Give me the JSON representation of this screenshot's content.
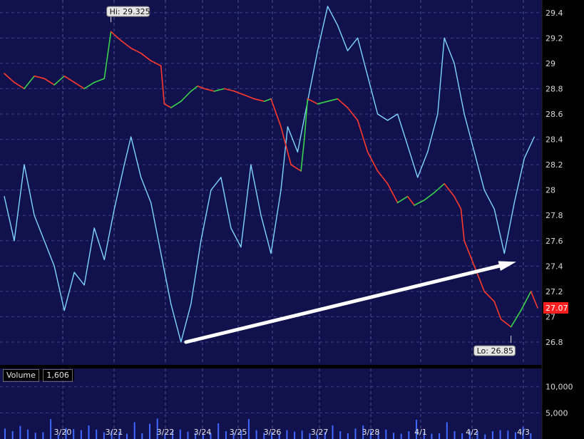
{
  "chart_data": {
    "type": "line",
    "panels": [
      {
        "name": "price",
        "ylim": [
          26.62,
          29.5
        ],
        "yticks": [
          "29.4",
          "29.2",
          "29",
          "28.8",
          "28.6",
          "28.4",
          "28.2",
          "28",
          "27.8",
          "27.6",
          "27.4",
          "27.2",
          "27",
          "26.8"
        ],
        "last_price": "27.07",
        "hi_label": "Hi: 29.325",
        "lo_label": "Lo: 26.85",
        "hi_value": 29.325,
        "lo_value": 26.85
      },
      {
        "name": "volume",
        "title": "Volume",
        "title_value": "1,606",
        "ylim": [
          0,
          13500
        ],
        "yticks": [
          "10,000",
          "5,000"
        ]
      }
    ],
    "xticks": [
      "3/20",
      "3/21",
      "3/22",
      "3/24",
      "3/25",
      "3/26",
      "3/27",
      "3/28",
      "4/1",
      "4/2",
      "4/3"
    ],
    "price_series": [
      {
        "x": 0,
        "y": 28.92
      },
      {
        "x": 0.3,
        "y": 28.85
      },
      {
        "x": 0.6,
        "y": 28.8
      },
      {
        "x": 0.9,
        "y": 28.9
      },
      {
        "x": 1.2,
        "y": 28.88
      },
      {
        "x": 1.5,
        "y": 28.83
      },
      {
        "x": 1.8,
        "y": 28.9
      },
      {
        "x": 2.1,
        "y": 28.85
      },
      {
        "x": 2.4,
        "y": 28.8
      },
      {
        "x": 2.7,
        "y": 28.85
      },
      {
        "x": 3,
        "y": 28.88
      },
      {
        "x": 3.2,
        "y": 29.25
      },
      {
        "x": 3.5,
        "y": 29.18
      },
      {
        "x": 3.8,
        "y": 29.12
      },
      {
        "x": 4.1,
        "y": 29.08
      },
      {
        "x": 4.4,
        "y": 29.02
      },
      {
        "x": 4.7,
        "y": 28.98
      },
      {
        "x": 4.8,
        "y": 28.68
      },
      {
        "x": 5,
        "y": 28.65
      },
      {
        "x": 5.3,
        "y": 28.7
      },
      {
        "x": 5.6,
        "y": 28.78
      },
      {
        "x": 5.8,
        "y": 28.82
      },
      {
        "x": 6,
        "y": 28.8
      },
      {
        "x": 6.3,
        "y": 28.78
      },
      {
        "x": 6.6,
        "y": 28.8
      },
      {
        "x": 6.9,
        "y": 28.78
      },
      {
        "x": 7.2,
        "y": 28.75
      },
      {
        "x": 7.5,
        "y": 28.72
      },
      {
        "x": 7.8,
        "y": 28.7
      },
      {
        "x": 8,
        "y": 28.72
      },
      {
        "x": 8.3,
        "y": 28.5
      },
      {
        "x": 8.6,
        "y": 28.2
      },
      {
        "x": 8.9,
        "y": 28.15
      },
      {
        "x": 9,
        "y": 28.4
      },
      {
        "x": 9.1,
        "y": 28.72
      },
      {
        "x": 9.4,
        "y": 28.68
      },
      {
        "x": 9.7,
        "y": 28.7
      },
      {
        "x": 10,
        "y": 28.72
      },
      {
        "x": 10.3,
        "y": 28.65
      },
      {
        "x": 10.6,
        "y": 28.55
      },
      {
        "x": 10.9,
        "y": 28.3
      },
      {
        "x": 11.2,
        "y": 28.15
      },
      {
        "x": 11.5,
        "y": 28.05
      },
      {
        "x": 11.8,
        "y": 27.9
      },
      {
        "x": 12.1,
        "y": 27.95
      },
      {
        "x": 12.3,
        "y": 27.88
      },
      {
        "x": 12.6,
        "y": 27.92
      },
      {
        "x": 12.9,
        "y": 27.98
      },
      {
        "x": 13.2,
        "y": 28.05
      },
      {
        "x": 13.5,
        "y": 27.95
      },
      {
        "x": 13.7,
        "y": 27.85
      },
      {
        "x": 13.8,
        "y": 27.6
      },
      {
        "x": 14.1,
        "y": 27.4
      },
      {
        "x": 14.4,
        "y": 27.2
      },
      {
        "x": 14.7,
        "y": 27.12
      },
      {
        "x": 14.9,
        "y": 26.98
      },
      {
        "x": 15.2,
        "y": 26.92
      },
      {
        "x": 15.5,
        "y": 27.05
      },
      {
        "x": 15.8,
        "y": 27.2
      },
      {
        "x": 16,
        "y": 27.07
      }
    ],
    "indicator_series": [
      {
        "x": 0,
        "y": 27.95
      },
      {
        "x": 0.3,
        "y": 27.6
      },
      {
        "x": 0.6,
        "y": 28.2
      },
      {
        "x": 0.9,
        "y": 27.8
      },
      {
        "x": 1.2,
        "y": 27.6
      },
      {
        "x": 1.5,
        "y": 27.4
      },
      {
        "x": 1.8,
        "y": 27.05
      },
      {
        "x": 2.1,
        "y": 27.35
      },
      {
        "x": 2.4,
        "y": 27.25
      },
      {
        "x": 2.7,
        "y": 27.7
      },
      {
        "x": 3,
        "y": 27.45
      },
      {
        "x": 3.3,
        "y": 27.85
      },
      {
        "x": 3.6,
        "y": 28.2
      },
      {
        "x": 3.8,
        "y": 28.42
      },
      {
        "x": 4.1,
        "y": 28.1
      },
      {
        "x": 4.4,
        "y": 27.9
      },
      {
        "x": 4.7,
        "y": 27.5
      },
      {
        "x": 5,
        "y": 27.1
      },
      {
        "x": 5.3,
        "y": 26.8
      },
      {
        "x": 5.6,
        "y": 27.1
      },
      {
        "x": 5.9,
        "y": 27.6
      },
      {
        "x": 6.2,
        "y": 28
      },
      {
        "x": 6.5,
        "y": 28.1
      },
      {
        "x": 6.8,
        "y": 27.7
      },
      {
        "x": 7.1,
        "y": 27.55
      },
      {
        "x": 7.4,
        "y": 28.2
      },
      {
        "x": 7.7,
        "y": 27.8
      },
      {
        "x": 8,
        "y": 27.5
      },
      {
        "x": 8.3,
        "y": 28
      },
      {
        "x": 8.5,
        "y": 28.5
      },
      {
        "x": 8.8,
        "y": 28.3
      },
      {
        "x": 9.1,
        "y": 28.7
      },
      {
        "x": 9.4,
        "y": 29.1
      },
      {
        "x": 9.7,
        "y": 29.45
      },
      {
        "x": 10,
        "y": 29.3
      },
      {
        "x": 10.3,
        "y": 29.1
      },
      {
        "x": 10.6,
        "y": 29.2
      },
      {
        "x": 10.9,
        "y": 28.9
      },
      {
        "x": 11.2,
        "y": 28.6
      },
      {
        "x": 11.5,
        "y": 28.55
      },
      {
        "x": 11.8,
        "y": 28.6
      },
      {
        "x": 12.1,
        "y": 28.35
      },
      {
        "x": 12.4,
        "y": 28.1
      },
      {
        "x": 12.7,
        "y": 28.3
      },
      {
        "x": 13,
        "y": 28.6
      },
      {
        "x": 13.2,
        "y": 29.2
      },
      {
        "x": 13.5,
        "y": 29
      },
      {
        "x": 13.8,
        "y": 28.6
      },
      {
        "x": 14.1,
        "y": 28.3
      },
      {
        "x": 14.4,
        "y": 28
      },
      {
        "x": 14.7,
        "y": 27.85
      },
      {
        "x": 15,
        "y": 27.5
      },
      {
        "x": 15.3,
        "y": 27.9
      },
      {
        "x": 15.6,
        "y": 28.25
      },
      {
        "x": 15.9,
        "y": 28.42
      }
    ],
    "volume_values": [
      2000,
      1500,
      2500,
      1800,
      1200,
      1300,
      3800,
      800,
      2100,
      1900,
      1700,
      2600,
      1800,
      1300,
      1600,
      1400,
      1000,
      3200,
      1100,
      2900,
      3900,
      1000,
      1600,
      1800,
      1400,
      1200,
      900,
      1100,
      3000,
      1500,
      1200,
      1600,
      3800,
      1700,
      1200,
      1300,
      1000,
      1700,
      1400,
      1600,
      1100,
      900,
      1300,
      2600,
      1500,
      1100,
      2000,
      2600,
      1700,
      1500,
      1800,
      1200,
      1000,
      1500,
      3700,
      1400,
      1000,
      1100,
      3200,
      1500,
      1100,
      1600,
      1500,
      900,
      1500,
      1700,
      1600,
      1300,
      2300,
      1100
    ]
  }
}
